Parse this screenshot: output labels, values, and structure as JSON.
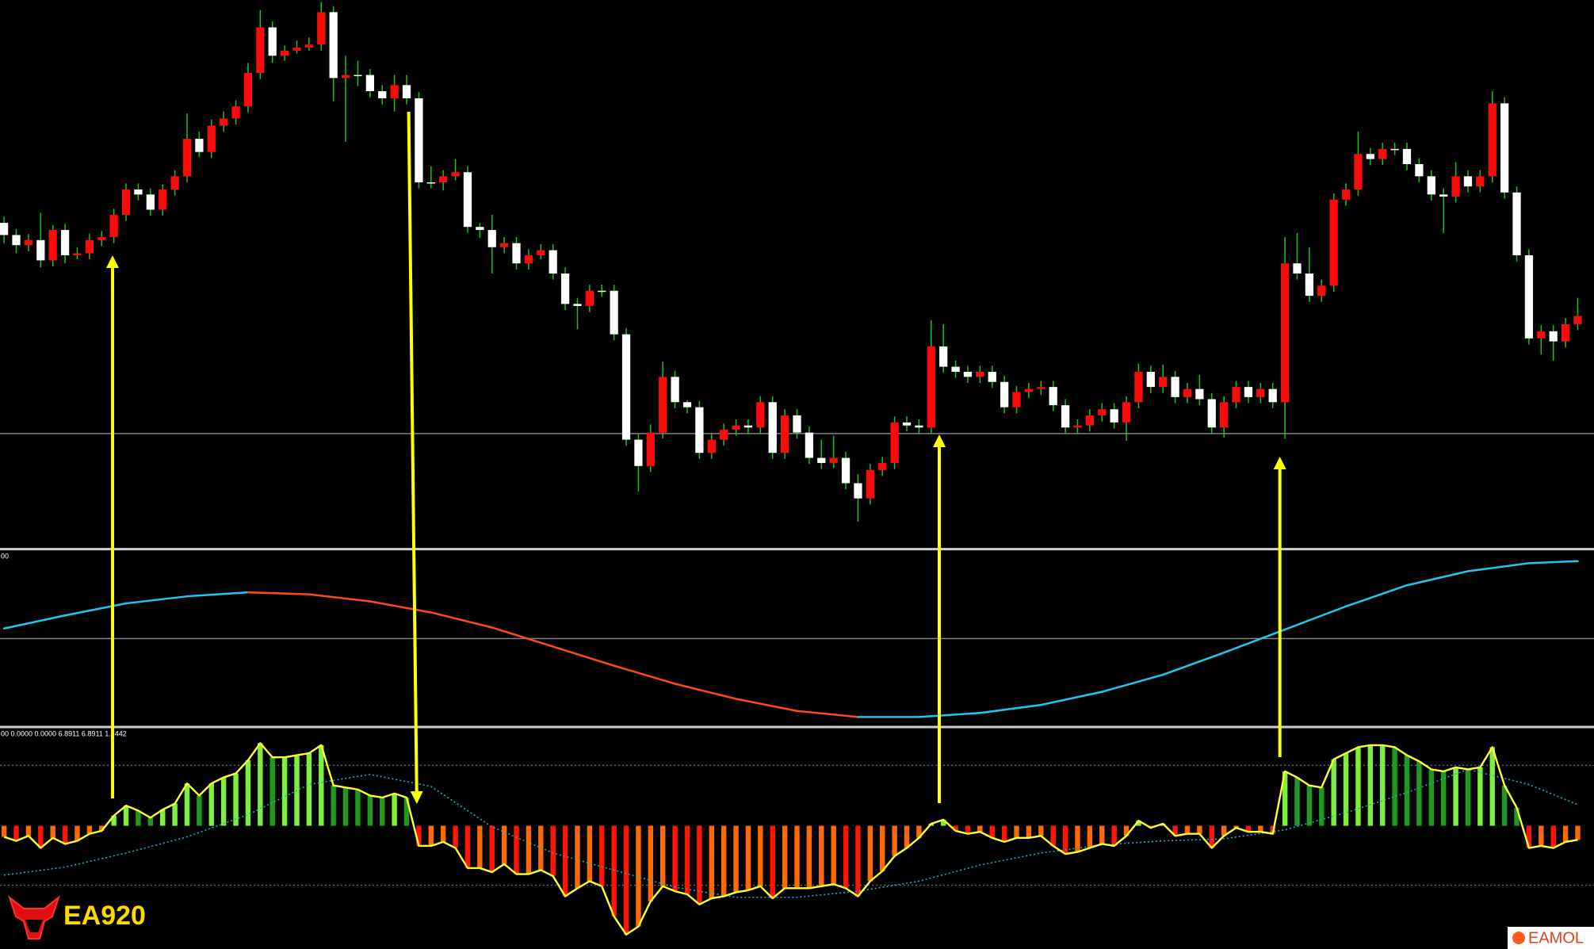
{
  "chart_data": [
    {
      "type": "candlestick",
      "up_color": "#ff0a0a",
      "down_color": "#ffffff",
      "wick_color": "#1fc01f",
      "level_color": "#9a9a9a",
      "ylim": [
        0,
        538
      ],
      "levels": [
        112
      ],
      "ohlc": [
        [
          320,
          326,
          300,
          308
        ],
        [
          308,
          314,
          290,
          298
        ],
        [
          298,
          309,
          292,
          303
        ],
        [
          303,
          330,
          276,
          283
        ],
        [
          283,
          318,
          277,
          313
        ],
        [
          313,
          319,
          280,
          288
        ],
        [
          288,
          296,
          284,
          290
        ],
        [
          290,
          309,
          284,
          303
        ],
        [
          303,
          312,
          297,
          306
        ],
        [
          306,
          334,
          300,
          328
        ],
        [
          328,
          359,
          322,
          353
        ],
        [
          353,
          359,
          342,
          348
        ],
        [
          348,
          354,
          327,
          333
        ],
        [
          333,
          358,
          327,
          353
        ],
        [
          353,
          372,
          347,
          366
        ],
        [
          366,
          428,
          360,
          403
        ],
        [
          403,
          410,
          385,
          390
        ],
        [
          390,
          422,
          384,
          416
        ],
        [
          416,
          430,
          410,
          423
        ],
        [
          423,
          441,
          417,
          435
        ],
        [
          435,
          478,
          429,
          468
        ],
        [
          468,
          530,
          462,
          513
        ],
        [
          513,
          519,
          478,
          485
        ],
        [
          485,
          495,
          480,
          490
        ],
        [
          490,
          500,
          487,
          493
        ],
        [
          493,
          503,
          490,
          496
        ],
        [
          496,
          538,
          490,
          528
        ],
        [
          528,
          534,
          440,
          463
        ],
        [
          463,
          485,
          400,
          466
        ],
        [
          466,
          480,
          455,
          466
        ],
        [
          466,
          472,
          444,
          450
        ],
        [
          450,
          456,
          437,
          443
        ],
        [
          443,
          466,
          430,
          456
        ],
        [
          456,
          466,
          437,
          443
        ],
        [
          443,
          449,
          354,
          360
        ],
        [
          360,
          376,
          354,
          360
        ],
        [
          360,
          372,
          352,
          366
        ],
        [
          366,
          383,
          362,
          370
        ],
        [
          370,
          376,
          310,
          316
        ],
        [
          316,
          320,
          305,
          313
        ],
        [
          313,
          328,
          270,
          296
        ],
        [
          296,
          306,
          290,
          300
        ],
        [
          300,
          306,
          274,
          280
        ],
        [
          280,
          294,
          274,
          288
        ],
        [
          288,
          299,
          284,
          293
        ],
        [
          293,
          299,
          264,
          270
        ],
        [
          270,
          276,
          234,
          240
        ],
        [
          240,
          246,
          215,
          238
        ],
        [
          238,
          259,
          232,
          253
        ],
        [
          253,
          259,
          247,
          253
        ],
        [
          253,
          259,
          204,
          210
        ],
        [
          210,
          216,
          100,
          106
        ],
        [
          106,
          112,
          55,
          80
        ],
        [
          80,
          121,
          74,
          113
        ],
        [
          113,
          183,
          107,
          168
        ],
        [
          168,
          174,
          137,
          143
        ],
        [
          143,
          145,
          132,
          138
        ],
        [
          138,
          144,
          87,
          93
        ],
        [
          93,
          112,
          87,
          106
        ],
        [
          106,
          122,
          100,
          116
        ],
        [
          116,
          126,
          110,
          120
        ],
        [
          120,
          126,
          112,
          118
        ],
        [
          118,
          149,
          112,
          143
        ],
        [
          143,
          149,
          87,
          93
        ],
        [
          93,
          136,
          87,
          130
        ],
        [
          130,
          136,
          107,
          113
        ],
        [
          113,
          119,
          82,
          88
        ],
        [
          88,
          106,
          77,
          83
        ],
        [
          83,
          110,
          78,
          88
        ],
        [
          88,
          94,
          57,
          63
        ],
        [
          63,
          72,
          25,
          48
        ],
        [
          48,
          82,
          42,
          76
        ],
        [
          76,
          89,
          70,
          83
        ],
        [
          83,
          129,
          77,
          123
        ],
        [
          123,
          129,
          114,
          120
        ],
        [
          120,
          126,
          112,
          118
        ],
        [
          118,
          224,
          112,
          198
        ],
        [
          198,
          220,
          172,
          178
        ],
        [
          178,
          184,
          167,
          173
        ],
        [
          173,
          179,
          162,
          168
        ],
        [
          168,
          179,
          162,
          173
        ],
        [
          173,
          179,
          157,
          163
        ],
        [
          163,
          169,
          132,
          138
        ],
        [
          138,
          159,
          132,
          153
        ],
        [
          153,
          162,
          147,
          156
        ],
        [
          156,
          164,
          150,
          158
        ],
        [
          158,
          164,
          134,
          140
        ],
        [
          140,
          146,
          112,
          118
        ],
        [
          118,
          126,
          112,
          120
        ],
        [
          120,
          136,
          114,
          130
        ],
        [
          130,
          142,
          124,
          136
        ],
        [
          136,
          142,
          117,
          123
        ],
        [
          123,
          149,
          105,
          143
        ],
        [
          143,
          181,
          137,
          173
        ],
        [
          173,
          179,
          152,
          158
        ],
        [
          158,
          180,
          152,
          168
        ],
        [
          168,
          174,
          142,
          148
        ],
        [
          148,
          162,
          142,
          156
        ],
        [
          156,
          170,
          140,
          146
        ],
        [
          146,
          152,
          112,
          118
        ],
        [
          118,
          149,
          108,
          143
        ],
        [
          143,
          164,
          137,
          158
        ],
        [
          158,
          164,
          142,
          148
        ],
        [
          148,
          162,
          142,
          156
        ],
        [
          156,
          162,
          137,
          143
        ],
        [
          143,
          306,
          107,
          280
        ],
        [
          280,
          310,
          264,
          270
        ],
        [
          270,
          296,
          242,
          248
        ],
        [
          248,
          264,
          242,
          258
        ],
        [
          258,
          349,
          252,
          343
        ],
        [
          343,
          359,
          337,
          353
        ],
        [
          353,
          410,
          347,
          388
        ],
        [
          388,
          394,
          377,
          383
        ],
        [
          383,
          399,
          377,
          393
        ],
        [
          393,
          399,
          387,
          393
        ],
        [
          393,
          399,
          372,
          378
        ],
        [
          378,
          384,
          360,
          366
        ],
        [
          366,
          372,
          342,
          348
        ],
        [
          348,
          354,
          310,
          346
        ],
        [
          346,
          380,
          340,
          366
        ],
        [
          366,
          372,
          350,
          356
        ],
        [
          356,
          372,
          350,
          366
        ],
        [
          366,
          450,
          360,
          438
        ],
        [
          438,
          444,
          344,
          350
        ],
        [
          350,
          356,
          282,
          288
        ],
        [
          288,
          294,
          200,
          206
        ],
        [
          206,
          219,
          190,
          213
        ],
        [
          213,
          219,
          184,
          203
        ],
        [
          203,
          226,
          197,
          220
        ],
        [
          220,
          246,
          214,
          228
        ]
      ]
    },
    {
      "type": "line",
      "label": "00",
      "up_color": "#1ec8f0",
      "down_color": "#ff4a1a",
      "level_color": "#8a8a8a",
      "ylim": [
        0,
        175
      ],
      "levels": [
        88
      ],
      "x": [
        0,
        5,
        10,
        15,
        20,
        25,
        30,
        35,
        40,
        45,
        50,
        55,
        60,
        65,
        70,
        75,
        80,
        85,
        90,
        95,
        100,
        105,
        110,
        115,
        120,
        125,
        129
      ],
      "values": [
        98,
        111,
        123,
        130,
        134,
        132,
        125,
        114,
        99,
        80,
        61,
        43,
        28,
        16,
        10,
        10,
        14,
        22,
        35,
        52,
        74,
        97,
        120,
        141,
        155,
        163,
        165
      ]
    },
    {
      "type": "bar",
      "label": "00 0.0000 0.0000 6.8911 6.8911 1.7442",
      "pos_up_color": "#7cf03c",
      "pos_down_color": "#1f9a1f",
      "neg_down_color": "#ff1500",
      "neg_up_color": "#ff6a00",
      "line_color": "#ffff33",
      "signal_color": "#1ab0c8",
      "level_color": "#6a6a6a",
      "ylim": [
        -122,
        95
      ],
      "levels": [
        60,
        -59
      ],
      "values": [
        -11,
        -15,
        -10,
        -22,
        -12,
        -18,
        -15,
        -8,
        -5,
        10,
        20,
        15,
        8,
        16,
        22,
        42,
        30,
        42,
        48,
        52,
        65,
        82,
        68,
        68,
        70,
        72,
        80,
        40,
        38,
        36,
        30,
        28,
        32,
        28,
        -20,
        -20,
        -16,
        -22,
        -42,
        -42,
        -46,
        -38,
        -48,
        -48,
        -44,
        -50,
        -70,
        -62,
        -55,
        -60,
        -90,
        -108,
        -100,
        -75,
        -60,
        -65,
        -68,
        -78,
        -72,
        -70,
        -66,
        -64,
        -60,
        -72,
        -62,
        -62,
        -62,
        -60,
        -58,
        -62,
        -70,
        -55,
        -45,
        -30,
        -22,
        -12,
        2,
        6,
        -5,
        -8,
        -6,
        -12,
        -16,
        -12,
        -12,
        -10,
        -20,
        -28,
        -26,
        -22,
        -18,
        -20,
        -10,
        5,
        -2,
        2,
        -10,
        -8,
        -8,
        -22,
        -10,
        -2,
        -6,
        -6,
        -8,
        54,
        48,
        40,
        38,
        66,
        72,
        78,
        80,
        80,
        78,
        70,
        64,
        56,
        54,
        58,
        56,
        58,
        78,
        40,
        18,
        -22,
        -20,
        -22,
        -16,
        -14
      ],
      "signal": {
        "x": [
          0,
          5,
          10,
          15,
          20,
          25,
          30,
          35,
          40,
          45,
          50,
          55,
          60,
          65,
          70,
          75,
          80,
          85,
          90,
          95,
          100,
          105,
          110,
          115,
          120,
          125,
          129
        ],
        "values": [
          -49,
          -41,
          -27,
          -11,
          11,
          41,
          51,
          39,
          -1,
          -27,
          -44,
          -61,
          -71,
          -71,
          -65,
          -55,
          -39,
          -27,
          -19,
          -15,
          -13,
          -4,
          13,
          33,
          56,
          41,
          21
        ]
      }
    }
  ],
  "logo": "EA920",
  "watermark": "EAMOL"
}
